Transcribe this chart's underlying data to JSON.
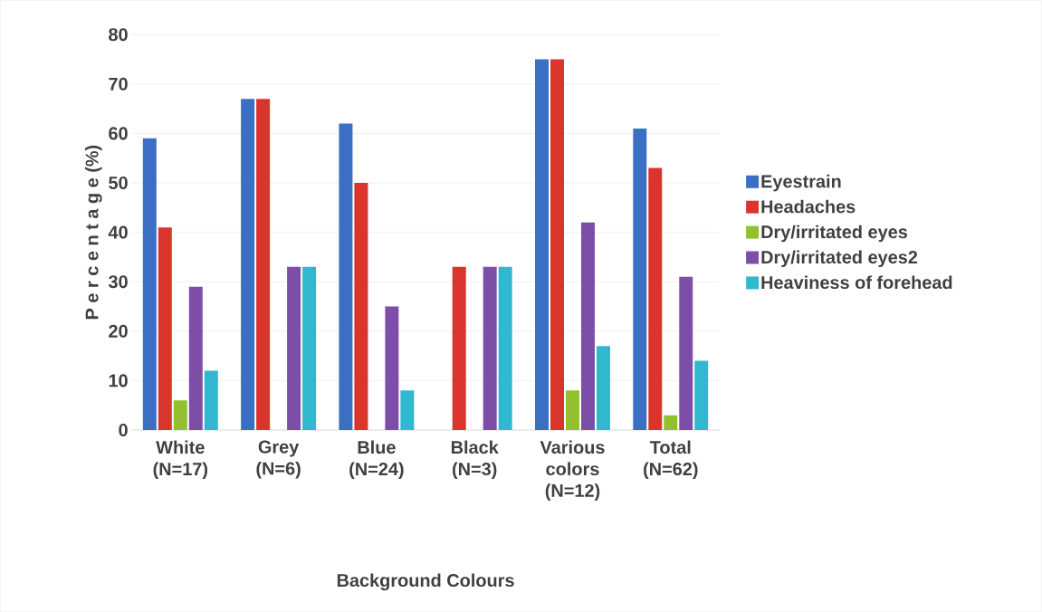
{
  "chart_data": {
    "type": "bar",
    "xlabel": "Background Colours",
    "ylabel": "P e r c e n t a g e (%)",
    "categories": [
      "White (N=17)",
      "Grey (N=6)",
      "Blue (N=24)",
      "Black (N=3)",
      "Various colors (N=12)",
      "Total (N=62)"
    ],
    "series": [
      {
        "name": "Eyestrain",
        "color": "#3a6fc4",
        "values": [
          59,
          67,
          62,
          0,
          75,
          61
        ]
      },
      {
        "name": "Headaches",
        "color": "#d9352c",
        "values": [
          41,
          67,
          50,
          33,
          75,
          53
        ]
      },
      {
        "name": "Dry/irritated eyes",
        "color": "#92c02f",
        "values": [
          6,
          0,
          0,
          0,
          8,
          3
        ]
      },
      {
        "name": "Dry/irritated eyes2",
        "color": "#7d4ea8",
        "values": [
          29,
          33,
          25,
          33,
          42,
          31
        ]
      },
      {
        "name": "Heaviness of forehead",
        "color": "#2fb8cf",
        "values": [
          12,
          33,
          8,
          33,
          17,
          14
        ]
      }
    ],
    "ylim": [
      0,
      80
    ],
    "yticks": [
      0,
      10,
      20,
      30,
      40,
      50,
      60,
      70,
      80
    ],
    "grid": "y",
    "legend": "right"
  }
}
